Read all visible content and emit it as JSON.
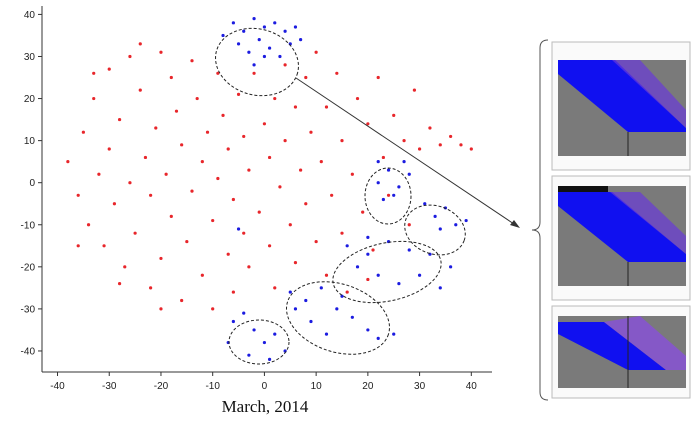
{
  "chart_data": {
    "type": "scatter",
    "title": "March, 2014",
    "xlim": [
      -43,
      44
    ],
    "ylim": [
      -45,
      42
    ],
    "xticks": [
      -40,
      -30,
      -20,
      -10,
      0,
      10,
      20,
      30,
      40
    ],
    "yticks": [
      -40,
      -30,
      -20,
      -10,
      0,
      10,
      20,
      30,
      40
    ],
    "series": [
      {
        "color": "#e8262b",
        "x": [
          -38,
          -36,
          -35,
          -34,
          -33,
          -32,
          -31,
          -30,
          -30,
          -29,
          -28,
          -27,
          -26,
          -26,
          -25,
          -24,
          -23,
          -22,
          -22,
          -21,
          -20,
          -20,
          -19,
          -18,
          -18,
          -17,
          -16,
          -16,
          -15,
          -14,
          -14,
          -13,
          -12,
          -12,
          -11,
          -10,
          -10,
          -9,
          -9,
          -8,
          -7,
          -7,
          -6,
          -6,
          -5,
          -4,
          -4,
          -3,
          -3,
          -2,
          -1,
          0,
          1,
          1,
          2,
          2,
          3,
          4,
          4,
          5,
          6,
          6,
          7,
          8,
          8,
          9,
          10,
          10,
          11,
          12,
          12,
          13,
          14,
          15,
          15,
          16,
          17,
          18,
          19,
          20,
          21,
          22,
          23,
          24,
          25,
          27,
          29,
          30,
          32,
          34,
          36,
          38,
          40,
          28,
          20,
          -36,
          -28,
          -20,
          -33,
          -24
        ],
        "values": [
          5,
          -3,
          12,
          -10,
          20,
          2,
          -15,
          27,
          8,
          -5,
          15,
          -20,
          30,
          0,
          -12,
          22,
          6,
          -25,
          -3,
          13,
          31,
          -18,
          2,
          25,
          -8,
          17,
          -28,
          9,
          -14,
          29,
          -2,
          20,
          -22,
          5,
          12,
          -30,
          -9,
          26,
          1,
          16,
          -17,
          8,
          -26,
          -4,
          21,
          11,
          -12,
          -20,
          3,
          26,
          -7,
          14,
          -15,
          6,
          20,
          -25,
          -1,
          28,
          10,
          -10,
          18,
          -19,
          3,
          25,
          -5,
          12,
          -14,
          31,
          5,
          -22,
          18,
          -3,
          26,
          10,
          -12,
          -26,
          2,
          20,
          -7,
          14,
          -16,
          25,
          6,
          -3,
          16,
          10,
          22,
          8,
          13,
          9,
          11,
          9,
          8,
          -10,
          -23,
          -15,
          -24,
          -30,
          26,
          33
        ]
      },
      {
        "color": "#1c1ce0",
        "x": [
          -6,
          -4,
          -2,
          0,
          2,
          4,
          6,
          -5,
          -3,
          -1,
          1,
          3,
          5,
          -2,
          0,
          7,
          -8,
          22,
          24,
          26,
          28,
          23,
          25,
          27,
          22,
          31,
          33,
          35,
          37,
          39,
          34,
          16,
          20,
          24,
          28,
          32,
          36,
          18,
          22,
          26,
          30,
          34,
          20,
          5,
          8,
          11,
          14,
          17,
          20,
          22,
          25,
          9,
          12,
          6,
          15,
          -6,
          -4,
          -2,
          0,
          2,
          4,
          -3,
          1,
          -7,
          -5
        ],
        "values": [
          38,
          36,
          39,
          37,
          38,
          36,
          37,
          33,
          31,
          34,
          32,
          30,
          33,
          28,
          30,
          34,
          35,
          0,
          3,
          -1,
          2,
          -4,
          -3,
          5,
          5,
          -5,
          -8,
          -6,
          -10,
          -9,
          -11,
          -15,
          -13,
          -14,
          -16,
          -17,
          -20,
          -20,
          -22,
          -24,
          -22,
          -25,
          -17,
          -26,
          -28,
          -25,
          -30,
          -32,
          -35,
          -37,
          -36,
          -33,
          -36,
          -30,
          -27,
          -33,
          -31,
          -35,
          -38,
          -36,
          -40,
          -41,
          -42,
          -38,
          -11
        ]
      }
    ]
  }
}
